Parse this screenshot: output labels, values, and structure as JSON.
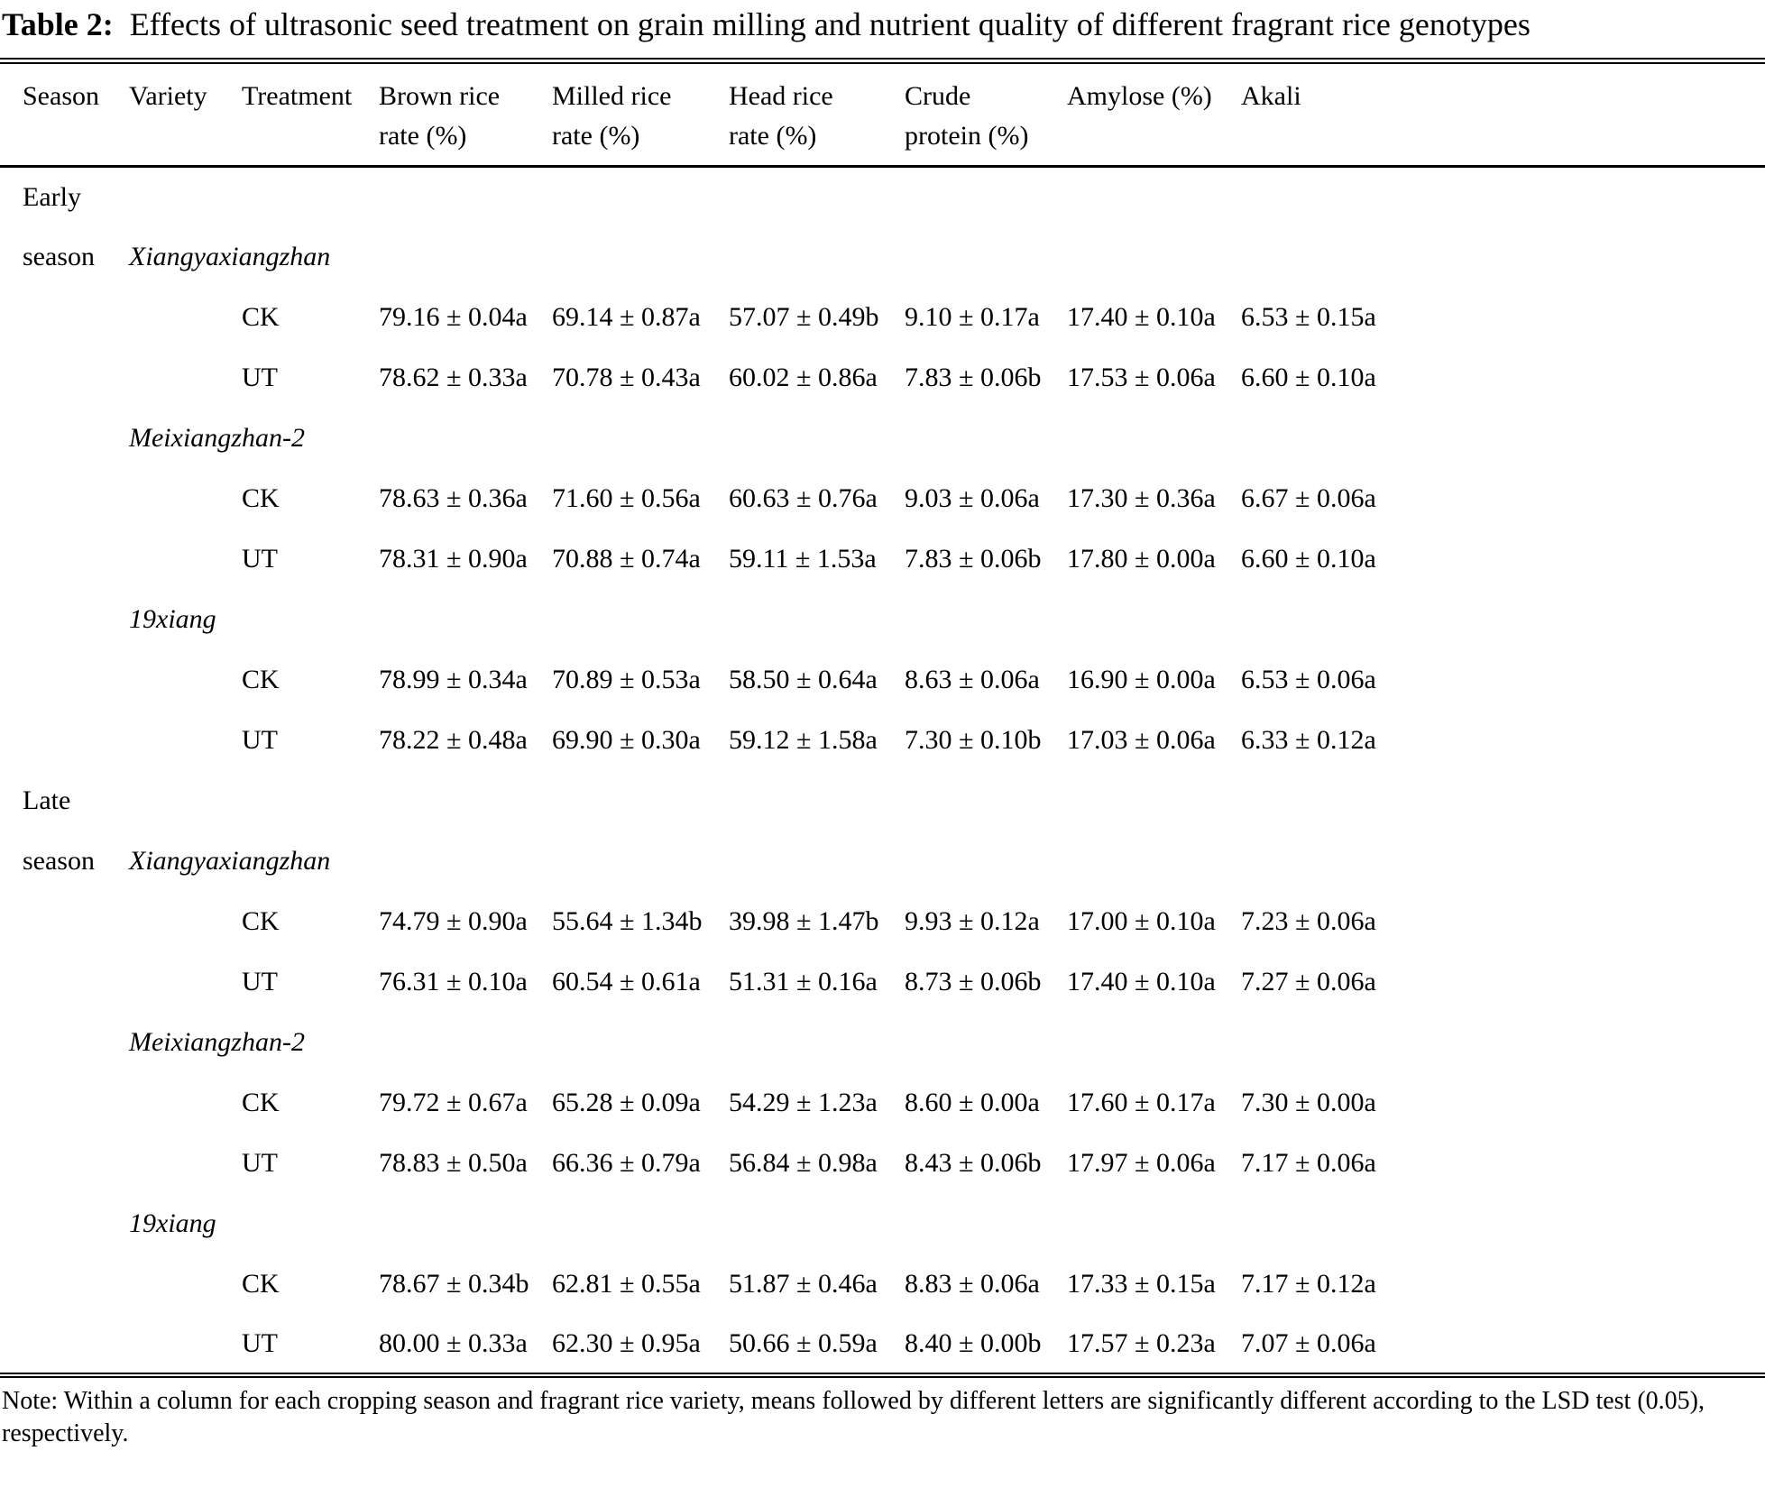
{
  "title": {
    "label": "Table 2:",
    "text": "Effects of ultrasonic seed treatment on grain milling and nutrient quality of different fragrant rice genotypes"
  },
  "colors": {
    "text": "#000000",
    "background": "#ffffff",
    "rule": "#000000"
  },
  "table": {
    "columns": [
      {
        "key": "season",
        "line1": "Season",
        "line2": ""
      },
      {
        "key": "variety",
        "line1": "Variety",
        "line2": ""
      },
      {
        "key": "treatment",
        "line1": "Treatment",
        "line2": ""
      },
      {
        "key": "brown",
        "line1": "Brown rice",
        "line2": "rate (%)"
      },
      {
        "key": "milled",
        "line1": "Milled rice",
        "line2": "rate (%)"
      },
      {
        "key": "head",
        "line1": "Head rice",
        "line2": "rate (%)"
      },
      {
        "key": "crude",
        "line1": "Crude",
        "line2": "protein (%)"
      },
      {
        "key": "amylose",
        "line1": "Amylose (%)",
        "line2": ""
      },
      {
        "key": "akali",
        "line1": "Akali",
        "line2": ""
      }
    ],
    "rows": [
      {
        "season": "Early",
        "variety": "",
        "treatment": "",
        "cells": [
          "",
          "",
          "",
          "",
          "",
          ""
        ]
      },
      {
        "season": "season",
        "variety": "Xiangyaxiangzhan",
        "treatment": "",
        "cells": [
          "",
          "",
          "",
          "",
          "",
          ""
        ]
      },
      {
        "season": "",
        "variety": "",
        "treatment": "CK",
        "cells": [
          "79.16 ± 0.04a",
          "69.14 ± 0.87a",
          "57.07 ± 0.49b",
          "9.10 ± 0.17a",
          "17.40 ± 0.10a",
          "6.53 ± 0.15a"
        ]
      },
      {
        "season": "",
        "variety": "",
        "treatment": "UT",
        "cells": [
          "78.62 ± 0.33a",
          "70.78 ± 0.43a",
          "60.02 ± 0.86a",
          "7.83 ± 0.06b",
          "17.53 ± 0.06a",
          "6.60 ± 0.10a"
        ]
      },
      {
        "season": "",
        "variety": "Meixiangzhan-2",
        "treatment": "",
        "cells": [
          "",
          "",
          "",
          "",
          "",
          ""
        ]
      },
      {
        "season": "",
        "variety": "",
        "treatment": "CK",
        "cells": [
          "78.63 ± 0.36a",
          "71.60 ± 0.56a",
          "60.63 ± 0.76a",
          "9.03 ± 0.06a",
          "17.30 ± 0.36a",
          "6.67 ± 0.06a"
        ]
      },
      {
        "season": "",
        "variety": "",
        "treatment": "UT",
        "cells": [
          "78.31 ± 0.90a",
          "70.88 ± 0.74a",
          "59.11 ± 1.53a",
          "7.83 ± 0.06b",
          "17.80 ± 0.00a",
          "6.60 ± 0.10a"
        ]
      },
      {
        "season": "",
        "variety": "19xiang",
        "treatment": "",
        "cells": [
          "",
          "",
          "",
          "",
          "",
          ""
        ]
      },
      {
        "season": "",
        "variety": "",
        "treatment": "CK",
        "cells": [
          "78.99 ± 0.34a",
          "70.89 ± 0.53a",
          "58.50 ± 0.64a",
          "8.63 ± 0.06a",
          "16.90 ± 0.00a",
          "6.53 ± 0.06a"
        ]
      },
      {
        "season": "",
        "variety": "",
        "treatment": "UT",
        "cells": [
          "78.22 ± 0.48a",
          "69.90 ± 0.30a",
          "59.12 ± 1.58a",
          "7.30 ± 0.10b",
          "17.03 ± 0.06a",
          "6.33 ± 0.12a"
        ]
      },
      {
        "season": "Late",
        "variety": "",
        "treatment": "",
        "cells": [
          "",
          "",
          "",
          "",
          "",
          ""
        ]
      },
      {
        "season": "season",
        "variety": "Xiangyaxiangzhan",
        "treatment": "",
        "cells": [
          "",
          "",
          "",
          "",
          "",
          ""
        ]
      },
      {
        "season": "",
        "variety": "",
        "treatment": "CK",
        "cells": [
          "74.79 ± 0.90a",
          "55.64 ± 1.34b",
          "39.98 ± 1.47b",
          "9.93 ± 0.12a",
          "17.00 ± 0.10a",
          "7.23 ± 0.06a"
        ]
      },
      {
        "season": "",
        "variety": "",
        "treatment": "UT",
        "cells": [
          "76.31 ± 0.10a",
          "60.54 ± 0.61a",
          "51.31 ± 0.16a",
          "8.73 ± 0.06b",
          "17.40 ± 0.10a",
          "7.27 ± 0.06a"
        ]
      },
      {
        "season": "",
        "variety": "Meixiangzhan-2",
        "treatment": "",
        "cells": [
          "",
          "",
          "",
          "",
          "",
          ""
        ]
      },
      {
        "season": "",
        "variety": "",
        "treatment": "CK",
        "cells": [
          "79.72 ± 0.67a",
          "65.28 ± 0.09a",
          "54.29 ± 1.23a",
          "8.60 ± 0.00a",
          "17.60 ± 0.17a",
          "7.30 ± 0.00a"
        ]
      },
      {
        "season": "",
        "variety": "",
        "treatment": "UT",
        "cells": [
          "78.83 ± 0.50a",
          "66.36 ± 0.79a",
          "56.84 ± 0.98a",
          "8.43 ± 0.06b",
          "17.97 ± 0.06a",
          "7.17 ± 0.06a"
        ]
      },
      {
        "season": "",
        "variety": "19xiang",
        "treatment": "",
        "cells": [
          "",
          "",
          "",
          "",
          "",
          ""
        ]
      },
      {
        "season": "",
        "variety": "",
        "treatment": "CK",
        "cells": [
          "78.67 ± 0.34b",
          "62.81 ± 0.55a",
          "51.87 ± 0.46a",
          "8.83 ± 0.06a",
          "17.33 ± 0.15a",
          "7.17 ± 0.12a"
        ]
      },
      {
        "season": "",
        "variety": "",
        "treatment": "UT",
        "cells": [
          "80.00 ± 0.33a",
          "62.30 ± 0.95a",
          "50.66 ± 0.59a",
          "8.40 ± 0.00b",
          "17.57 ± 0.23a",
          "7.07 ± 0.06a"
        ]
      }
    ]
  },
  "note": "Note: Within a column for each cropping season and fragrant rice variety, means followed by different letters are significantly different according to the LSD test (0.05), respectively."
}
